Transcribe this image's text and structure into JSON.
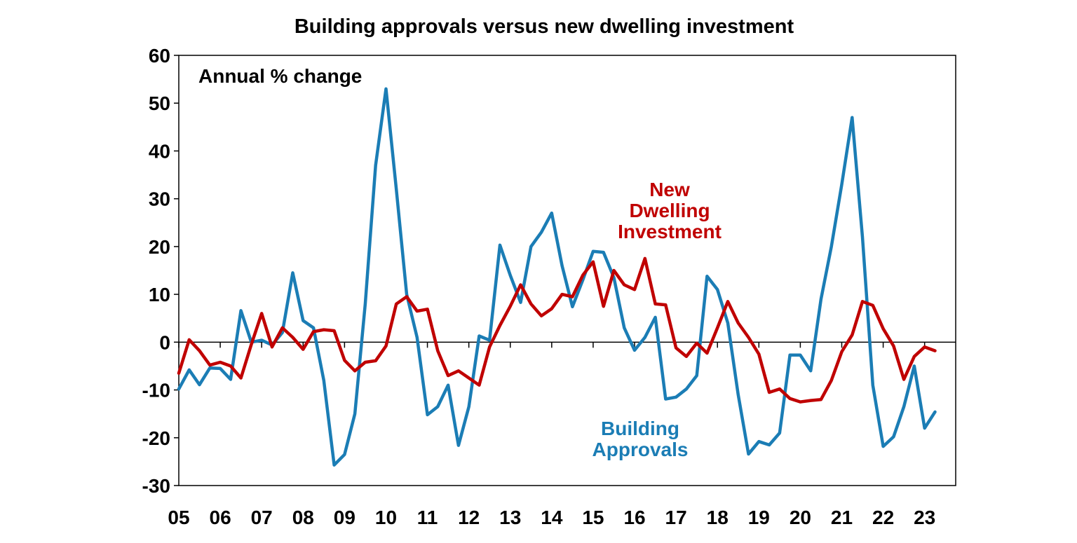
{
  "chart_data": {
    "type": "line",
    "title": "Building approvals versus new dwelling investment",
    "subtitle": "Annual % change",
    "xlabel": "",
    "ylabel": "",
    "ylim": [
      -30,
      60
    ],
    "yticks": [
      60,
      50,
      40,
      30,
      20,
      10,
      0,
      -10,
      -20,
      -30
    ],
    "xlim": [
      2005,
      2023.75
    ],
    "xticks": [
      "05",
      "06",
      "07",
      "08",
      "09",
      "10",
      "11",
      "12",
      "13",
      "14",
      "15",
      "16",
      "17",
      "18",
      "19",
      "20",
      "21",
      "22",
      "23"
    ],
    "grid": false,
    "colors": {
      "approvals": "#1b7db5",
      "investment": "#c00000"
    },
    "series": [
      {
        "key": "approvals",
        "name": "Building Approvals",
        "x": [
          2005.0,
          2005.25,
          2005.5,
          2005.75,
          2006.0,
          2006.25,
          2006.5,
          2006.75,
          2007.0,
          2007.25,
          2007.5,
          2007.75,
          2008.0,
          2008.25,
          2008.5,
          2008.75,
          2009.0,
          2009.25,
          2009.5,
          2009.75,
          2010.0,
          2010.25,
          2010.5,
          2010.75,
          2011.0,
          2011.25,
          2011.5,
          2011.75,
          2012.0,
          2012.25,
          2012.5,
          2012.75,
          2013.0,
          2013.25,
          2013.5,
          2013.75,
          2014.0,
          2014.25,
          2014.5,
          2014.75,
          2015.0,
          2015.25,
          2015.5,
          2015.75,
          2016.0,
          2016.25,
          2016.5,
          2016.75,
          2017.0,
          2017.25,
          2017.5,
          2017.75,
          2018.0,
          2018.25,
          2018.5,
          2018.75,
          2019.0,
          2019.25,
          2019.5,
          2019.75,
          2020.0,
          2020.25,
          2020.5,
          2020.75,
          2021.0,
          2021.25,
          2021.5,
          2021.75,
          2022.0,
          2022.25,
          2022.5,
          2022.75,
          2023.0,
          2023.25
        ],
        "values": [
          -9.8,
          -5.8,
          -8.9,
          -5.4,
          -5.5,
          -7.8,
          6.6,
          0.0,
          0.4,
          -0.6,
          2.0,
          14.5,
          4.5,
          3.0,
          -8.0,
          -25.7,
          -23.5,
          -15.0,
          8.0,
          37.0,
          53.0,
          32.0,
          10.0,
          1.0,
          -15.2,
          -13.5,
          -9.0,
          -21.6,
          -13.5,
          1.3,
          0.4,
          20.3,
          14.0,
          8.3,
          20.0,
          23.0,
          27.0,
          16.0,
          7.4,
          13.0,
          19.0,
          18.8,
          13.5,
          3.0,
          -1.7,
          1.0,
          5.2,
          -11.9,
          -11.5,
          -9.8,
          -7.0,
          13.8,
          11.0,
          4.0,
          -11.0,
          -23.4,
          -20.8,
          -21.5,
          -19.0,
          -2.7,
          -2.7,
          -6.0,
          9.0,
          20.0,
          33.0,
          47.0,
          22.0,
          -9.0,
          -21.8,
          -19.8,
          -13.5,
          -5.0,
          -18.0,
          -14.6
        ]
      },
      {
        "key": "investment",
        "name": "New Dwelling Investment",
        "x": [
          2005.0,
          2005.25,
          2005.5,
          2005.75,
          2006.0,
          2006.25,
          2006.5,
          2006.75,
          2007.0,
          2007.25,
          2007.5,
          2007.75,
          2008.0,
          2008.25,
          2008.5,
          2008.75,
          2009.0,
          2009.25,
          2009.5,
          2009.75,
          2010.0,
          2010.25,
          2010.5,
          2010.75,
          2011.0,
          2011.25,
          2011.5,
          2011.75,
          2012.0,
          2012.25,
          2012.5,
          2012.75,
          2013.0,
          2013.25,
          2013.5,
          2013.75,
          2014.0,
          2014.25,
          2014.5,
          2014.75,
          2015.0,
          2015.25,
          2015.5,
          2015.75,
          2016.0,
          2016.25,
          2016.5,
          2016.75,
          2017.0,
          2017.25,
          2017.5,
          2017.75,
          2018.0,
          2018.25,
          2018.5,
          2018.75,
          2019.0,
          2019.25,
          2019.5,
          2019.75,
          2020.0,
          2020.25,
          2020.5,
          2020.75,
          2021.0,
          2021.25,
          2021.5,
          2021.75,
          2022.0,
          2022.25,
          2022.5,
          2022.75,
          2023.0,
          2023.25
        ],
        "values": [
          -6.5,
          0.5,
          -1.8,
          -4.8,
          -4.2,
          -5.0,
          -7.5,
          -0.5,
          6.0,
          -1.0,
          3.0,
          1.0,
          -1.5,
          2.2,
          2.6,
          2.4,
          -3.8,
          -6.0,
          -4.2,
          -3.9,
          -0.8,
          8.0,
          9.5,
          6.5,
          6.9,
          -1.8,
          -7.0,
          -6.0,
          -7.5,
          -9.0,
          -1.0,
          3.5,
          7.5,
          12.0,
          8.0,
          5.5,
          7.0,
          10.0,
          9.5,
          14.0,
          16.8,
          7.5,
          15.0,
          12.0,
          11.0,
          17.5,
          8.0,
          7.8,
          -1.2,
          -3.0,
          -0.2,
          -2.3,
          3.0,
          8.5,
          4.0,
          1.0,
          -2.5,
          -10.5,
          -9.8,
          -11.8,
          -12.5,
          -12.2,
          -12.0,
          -8.0,
          -2.0,
          1.5,
          8.5,
          7.7,
          2.8,
          -0.8,
          -7.8,
          -3.0,
          -1.0,
          -1.8
        ]
      }
    ],
    "annotations": [
      {
        "key": "approvals",
        "lines": [
          "Building",
          "Approvals"
        ]
      },
      {
        "key": "investment",
        "lines": [
          "New",
          "Dwelling",
          "Investment"
        ]
      }
    ]
  }
}
